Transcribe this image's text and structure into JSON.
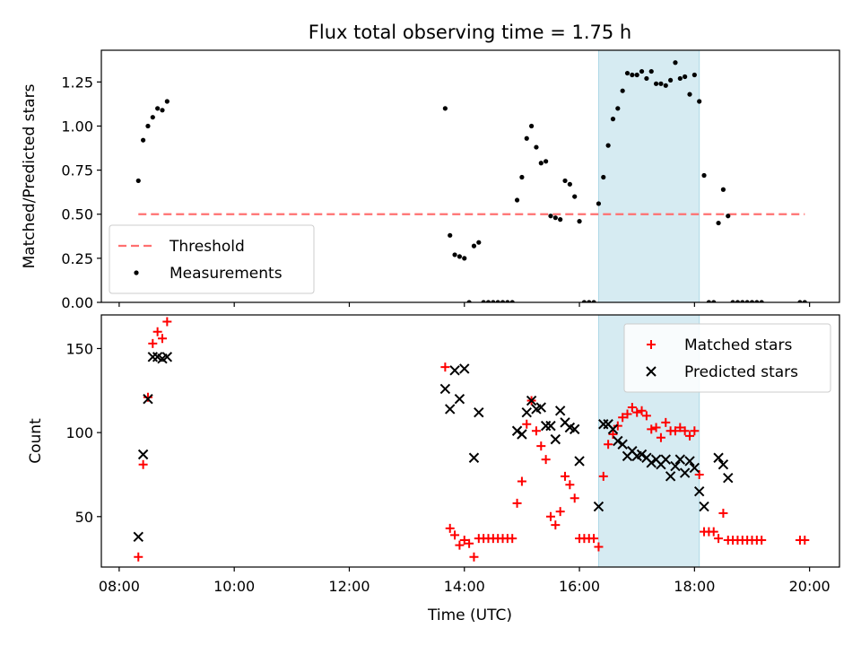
{
  "chart_data": {
    "type": "scatter",
    "title": "Flux total observing time = 1.75 h",
    "xlabel": "Time (UTC)",
    "x_unit": "hours UTC",
    "xlim": [
      "08:00",
      "20:00"
    ],
    "x_ticks": [
      "08:00",
      "10:00",
      "12:00",
      "14:00",
      "16:00",
      "18:00",
      "20:00"
    ],
    "highlight_band": {
      "from": "16:20",
      "to": "18:05",
      "color": "#add8e6"
    },
    "panels": [
      {
        "ylabel": "Matched/Predicted stars",
        "ylim": [
          0,
          1.43
        ],
        "y_ticks": [
          "0.00",
          "0.25",
          "0.50",
          "0.75",
          "1.00",
          "1.25"
        ],
        "legend_position": "lower-left",
        "series": [
          {
            "name": "Threshold",
            "style": "dashed-line",
            "color": "#ff7070",
            "points": [
              [
                "08:20",
                0.5
              ],
              [
                "19:55",
                0.5
              ]
            ]
          },
          {
            "name": "Measurements",
            "style": "dot",
            "color": "#000000",
            "points": [
              [
                "08:20",
                0.69
              ],
              [
                "08:25",
                0.92
              ],
              [
                "08:30",
                1.0
              ],
              [
                "08:35",
                1.05
              ],
              [
                "08:40",
                1.1
              ],
              [
                "08:45",
                1.09
              ],
              [
                "08:50",
                1.14
              ],
              [
                "13:40",
                1.1
              ],
              [
                "13:45",
                0.38
              ],
              [
                "13:50",
                0.27
              ],
              [
                "13:55",
                0.26
              ],
              [
                "14:00",
                0.25
              ],
              [
                "14:05",
                0.0
              ],
              [
                "14:10",
                0.32
              ],
              [
                "14:15",
                0.34
              ],
              [
                "14:20",
                0.0
              ],
              [
                "14:25",
                0.0
              ],
              [
                "14:30",
                0.0
              ],
              [
                "14:35",
                0.0
              ],
              [
                "14:40",
                0.0
              ],
              [
                "14:45",
                0.0
              ],
              [
                "14:50",
                0.0
              ],
              [
                "14:55",
                0.58
              ],
              [
                "15:00",
                0.71
              ],
              [
                "15:05",
                0.93
              ],
              [
                "15:10",
                1.0
              ],
              [
                "15:15",
                0.88
              ],
              [
                "15:20",
                0.79
              ],
              [
                "15:25",
                0.8
              ],
              [
                "15:30",
                0.49
              ],
              [
                "15:35",
                0.48
              ],
              [
                "15:40",
                0.47
              ],
              [
                "15:45",
                0.69
              ],
              [
                "15:50",
                0.67
              ],
              [
                "15:55",
                0.6
              ],
              [
                "16:00",
                0.46
              ],
              [
                "16:05",
                0.0
              ],
              [
                "16:10",
                0.0
              ],
              [
                "16:15",
                0.0
              ],
              [
                "16:20",
                0.56
              ],
              [
                "16:25",
                0.71
              ],
              [
                "16:30",
                0.89
              ],
              [
                "16:35",
                1.04
              ],
              [
                "16:40",
                1.1
              ],
              [
                "16:45",
                1.2
              ],
              [
                "16:50",
                1.3
              ],
              [
                "16:55",
                1.29
              ],
              [
                "17:00",
                1.29
              ],
              [
                "17:05",
                1.31
              ],
              [
                "17:10",
                1.27
              ],
              [
                "17:15",
                1.31
              ],
              [
                "17:20",
                1.24
              ],
              [
                "17:25",
                1.24
              ],
              [
                "17:30",
                1.23
              ],
              [
                "17:35",
                1.26
              ],
              [
                "17:40",
                1.36
              ],
              [
                "17:45",
                1.27
              ],
              [
                "17:50",
                1.28
              ],
              [
                "17:55",
                1.18
              ],
              [
                "18:00",
                1.29
              ],
              [
                "18:05",
                1.14
              ],
              [
                "18:10",
                0.72
              ],
              [
                "18:15",
                0.0
              ],
              [
                "18:20",
                0.0
              ],
              [
                "18:25",
                0.45
              ],
              [
                "18:30",
                0.64
              ],
              [
                "18:35",
                0.49
              ],
              [
                "18:40",
                0.0
              ],
              [
                "18:45",
                0.0
              ],
              [
                "18:50",
                0.0
              ],
              [
                "18:55",
                0.0
              ],
              [
                "19:00",
                0.0
              ],
              [
                "19:05",
                0.0
              ],
              [
                "19:10",
                0.0
              ],
              [
                "19:50",
                0.0
              ],
              [
                "19:55",
                0.0
              ]
            ]
          }
        ]
      },
      {
        "ylabel": "Count",
        "ylim": [
          20,
          170
        ],
        "y_ticks": [
          "50",
          "100",
          "150"
        ],
        "legend_position": "upper-right",
        "series": [
          {
            "name": "Matched stars",
            "style": "plus",
            "color": "#ff0000",
            "points": [
              [
                "08:20",
                26
              ],
              [
                "08:25",
                81
              ],
              [
                "08:30",
                121
              ],
              [
                "08:35",
                153
              ],
              [
                "08:40",
                160
              ],
              [
                "08:45",
                156
              ],
              [
                "08:50",
                166
              ],
              [
                "13:40",
                139
              ],
              [
                "13:45",
                43
              ],
              [
                "13:50",
                39
              ],
              [
                "13:55",
                33
              ],
              [
                "14:00",
                36
              ],
              [
                "14:05",
                34
              ],
              [
                "14:10",
                26
              ],
              [
                "14:15",
                37
              ],
              [
                "14:20",
                37
              ],
              [
                "14:25",
                37
              ],
              [
                "14:30",
                37
              ],
              [
                "14:35",
                37
              ],
              [
                "14:40",
                37
              ],
              [
                "14:45",
                37
              ],
              [
                "14:50",
                37
              ],
              [
                "14:55",
                58
              ],
              [
                "15:00",
                71
              ],
              [
                "15:05",
                105
              ],
              [
                "15:10",
                119
              ],
              [
                "15:15",
                101
              ],
              [
                "15:20",
                92
              ],
              [
                "15:25",
                84
              ],
              [
                "15:30",
                50
              ],
              [
                "15:35",
                45
              ],
              [
                "15:40",
                53
              ],
              [
                "15:45",
                74
              ],
              [
                "15:50",
                69
              ],
              [
                "15:55",
                61
              ],
              [
                "16:00",
                37
              ],
              [
                "16:05",
                37
              ],
              [
                "16:10",
                37
              ],
              [
                "16:15",
                37
              ],
              [
                "16:20",
                32
              ],
              [
                "16:25",
                74
              ],
              [
                "16:30",
                93
              ],
              [
                "16:35",
                99
              ],
              [
                "16:40",
                104
              ],
              [
                "16:45",
                109
              ],
              [
                "16:50",
                111
              ],
              [
                "16:55",
                115
              ],
              [
                "17:00",
                112
              ],
              [
                "17:05",
                113
              ],
              [
                "17:10",
                110
              ],
              [
                "17:15",
                102
              ],
              [
                "17:20",
                103
              ],
              [
                "17:25",
                97
              ],
              [
                "17:30",
                106
              ],
              [
                "17:35",
                101
              ],
              [
                "17:40",
                101
              ],
              [
                "17:45",
                103
              ],
              [
                "17:50",
                101
              ],
              [
                "17:55",
                98
              ],
              [
                "18:00",
                101
              ],
              [
                "18:05",
                75
              ],
              [
                "18:10",
                41
              ],
              [
                "18:15",
                41
              ],
              [
                "18:20",
                41
              ],
              [
                "18:25",
                37
              ],
              [
                "18:30",
                52
              ],
              [
                "18:35",
                36
              ],
              [
                "18:40",
                36
              ],
              [
                "18:45",
                36
              ],
              [
                "18:50",
                36
              ],
              [
                "18:55",
                36
              ],
              [
                "19:00",
                36
              ],
              [
                "19:05",
                36
              ],
              [
                "19:10",
                36
              ],
              [
                "19:50",
                36
              ],
              [
                "19:55",
                36
              ]
            ]
          },
          {
            "name": "Predicted stars",
            "style": "cross",
            "color": "#000000",
            "points": [
              [
                "08:20",
                38
              ],
              [
                "08:25",
                87
              ],
              [
                "08:30",
                120
              ],
              [
                "08:35",
                145
              ],
              [
                "08:40",
                145
              ],
              [
                "08:45",
                144
              ],
              [
                "08:50",
                145
              ],
              [
                "13:40",
                126
              ],
              [
                "13:45",
                114
              ],
              [
                "13:50",
                137
              ],
              [
                "13:55",
                120
              ],
              [
                "14:00",
                138
              ],
              [
                "14:10",
                85
              ],
              [
                "14:15",
                112
              ],
              [
                "14:55",
                101
              ],
              [
                "15:00",
                99
              ],
              [
                "15:05",
                112
              ],
              [
                "15:10",
                119
              ],
              [
                "15:15",
                114
              ],
              [
                "15:20",
                115
              ],
              [
                "15:25",
                104
              ],
              [
                "15:30",
                104
              ],
              [
                "15:35",
                96
              ],
              [
                "15:40",
                113
              ],
              [
                "15:45",
                106
              ],
              [
                "15:50",
                103
              ],
              [
                "15:55",
                102
              ],
              [
                "16:00",
                83
              ],
              [
                "16:20",
                56
              ],
              [
                "16:25",
                105
              ],
              [
                "16:30",
                105
              ],
              [
                "16:35",
                102
              ],
              [
                "16:40",
                95
              ],
              [
                "16:45",
                93
              ],
              [
                "16:50",
                86
              ],
              [
                "16:55",
                89
              ],
              [
                "17:00",
                86
              ],
              [
                "17:05",
                87
              ],
              [
                "17:10",
                85
              ],
              [
                "17:15",
                82
              ],
              [
                "17:20",
                84
              ],
              [
                "17:25",
                81
              ],
              [
                "17:30",
                84
              ],
              [
                "17:35",
                74
              ],
              [
                "17:40",
                80
              ],
              [
                "17:45",
                84
              ],
              [
                "17:50",
                76
              ],
              [
                "17:55",
                83
              ],
              [
                "18:00",
                79
              ],
              [
                "18:05",
                65
              ],
              [
                "18:10",
                56
              ],
              [
                "18:25",
                85
              ],
              [
                "18:30",
                81
              ],
              [
                "18:35",
                73
              ]
            ]
          }
        ]
      }
    ]
  }
}
